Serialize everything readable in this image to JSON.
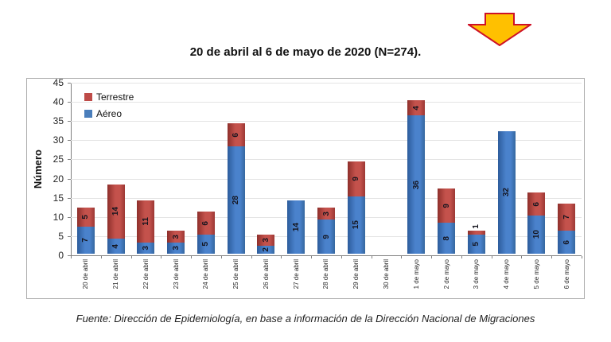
{
  "page": {
    "title": "20 de abril al 6 de mayo de 2020 (N=274).",
    "source_note": "Fuente: Dirección de Epidemiología, en base a información de la Dirección Nacional de Migraciones"
  },
  "arrow": {
    "name": "down-block-arrow",
    "fill": "#FFC000",
    "stroke": "#CE1126"
  },
  "chart_data": {
    "type": "bar",
    "stacked": true,
    "title": "20 de abril al 6 de mayo de 2020 (N=274).",
    "xlabel": "",
    "ylabel": "Número",
    "ylim": [
      0,
      45
    ],
    "ytick_step": 5,
    "grid": true,
    "legend_position": "upper-left-inside",
    "categories": [
      "20 de abril",
      "21 de abril",
      "22 de abril",
      "23 de abril",
      "24 de abril",
      "25 de abril",
      "26 de abril",
      "27 de abril",
      "28 de abril",
      "29 de abril",
      "30 de abril",
      "1 de mayo",
      "2 de mayo",
      "3 de mayo",
      "4 de mayo",
      "5 de mayo",
      "6 de mayo"
    ],
    "series": [
      {
        "name": "Terrestre",
        "color": "#BE4B48",
        "values": [
          5,
          14,
          11,
          3,
          6,
          6,
          3,
          0,
          3,
          9,
          0,
          4,
          9,
          1,
          0,
          6,
          7
        ]
      },
      {
        "name": "Aéreo",
        "color": "#4A7EBB",
        "values": [
          7,
          4,
          3,
          3,
          5,
          28,
          2,
          14,
          9,
          15,
          0,
          36,
          8,
          5,
          32,
          10,
          6
        ]
      }
    ],
    "totals": [
      12,
      18,
      14,
      6,
      11,
      34,
      5,
      14,
      12,
      24,
      0,
      40,
      17,
      6,
      32,
      16,
      13
    ],
    "n_total": 274
  }
}
